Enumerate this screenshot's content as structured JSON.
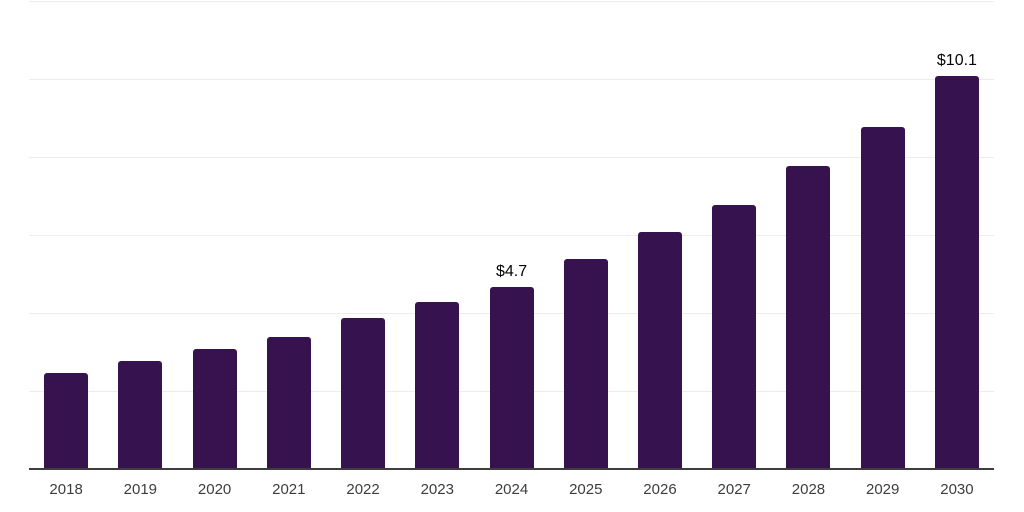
{
  "chart_data": {
    "type": "bar",
    "title": "",
    "xlabel": "",
    "ylabel": "",
    "categories": [
      "2018",
      "2019",
      "2020",
      "2021",
      "2022",
      "2023",
      "2024",
      "2025",
      "2026",
      "2027",
      "2028",
      "2029",
      "2030"
    ],
    "values": [
      2.5,
      2.8,
      3.1,
      3.4,
      3.9,
      4.3,
      4.7,
      5.4,
      6.1,
      6.8,
      7.8,
      8.8,
      10.1
    ],
    "annotations": [
      {
        "category": "2024",
        "text": "$4.7"
      },
      {
        "category": "2030",
        "text": "$10.1"
      }
    ],
    "ylim": [
      0,
      12
    ],
    "gridline_interval": 2,
    "grid": true,
    "legend": false,
    "colors": {
      "bar": "#36124E",
      "gridline": "#EDEDED",
      "axis_line": "#3D3D3D",
      "tick_label": "#3D3D3D",
      "value_label": "#050505",
      "background": "#FFFFFF"
    }
  }
}
